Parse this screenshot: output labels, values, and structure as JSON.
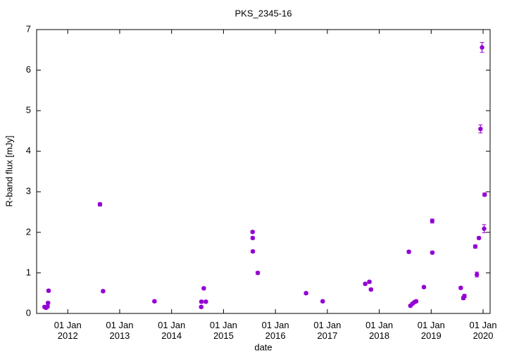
{
  "chart_data": {
    "type": "scatter",
    "title": "PKS_2345-16",
    "xlabel": "date",
    "ylabel": "R-band flux [mJy]",
    "color": "#9400d3",
    "x": [
      2011.553,
      2011.58,
      2011.61,
      2011.62,
      2011.63,
      2012.62,
      2012.68,
      2013.67,
      2014.57,
      2014.575,
      2014.62,
      2014.66,
      2015.56,
      2015.562,
      2015.565,
      2015.66,
      2016.59,
      2016.91,
      2017.73,
      2017.81,
      2017.84,
      2018.57,
      2018.6,
      2018.64,
      2018.68,
      2018.71,
      2018.86,
      2019.02,
      2019.022,
      2019.57,
      2019.62,
      2019.64,
      2019.85,
      2019.88,
      2019.92,
      2019.95,
      2019.98,
      2020.02,
      2020.03
    ],
    "values": [
      0.16,
      0.14,
      0.17,
      0.26,
      0.56,
      2.69,
      0.55,
      0.3,
      0.16,
      0.29,
      0.62,
      0.29,
      2.01,
      1.86,
      1.53,
      1.0,
      0.5,
      0.3,
      0.73,
      0.78,
      0.59,
      1.52,
      0.19,
      0.24,
      0.28,
      0.3,
      0.65,
      2.28,
      1.5,
      0.63,
      0.38,
      0.43,
      1.65,
      0.96,
      1.86,
      4.55,
      6.56,
      2.09,
      2.93
    ],
    "errors": [
      0.03,
      0.03,
      0.03,
      0.03,
      0.03,
      0.04,
      0.03,
      0.03,
      0.03,
      0.03,
      0.03,
      0.03,
      0.03,
      0.03,
      0.03,
      0.03,
      0.03,
      0.03,
      0.03,
      0.03,
      0.03,
      0.03,
      0.03,
      0.03,
      0.03,
      0.03,
      0.03,
      0.05,
      0.03,
      0.03,
      0.04,
      0.04,
      0.04,
      0.06,
      0.03,
      0.1,
      0.12,
      0.1,
      0.04
    ],
    "xlim": [
      2011.4,
      2020.135
    ],
    "ylim": [
      0,
      7
    ],
    "xticks": [
      {
        "value": 2012,
        "label": "01 Jan\n2012"
      },
      {
        "value": 2013,
        "label": "01 Jan\n2013"
      },
      {
        "value": 2014,
        "label": "01 Jan\n2014"
      },
      {
        "value": 2015,
        "label": "01 Jan\n2015"
      },
      {
        "value": 2016,
        "label": "01 Jan\n2016"
      },
      {
        "value": 2017,
        "label": "01 Jan\n2017"
      },
      {
        "value": 2018,
        "label": "01 Jan\n2018"
      },
      {
        "value": 2019,
        "label": "01 Jan\n2019"
      },
      {
        "value": 2020,
        "label": "01 Jan\n2020"
      }
    ],
    "yticks": [
      0,
      1,
      2,
      3,
      4,
      5,
      6,
      7
    ]
  }
}
